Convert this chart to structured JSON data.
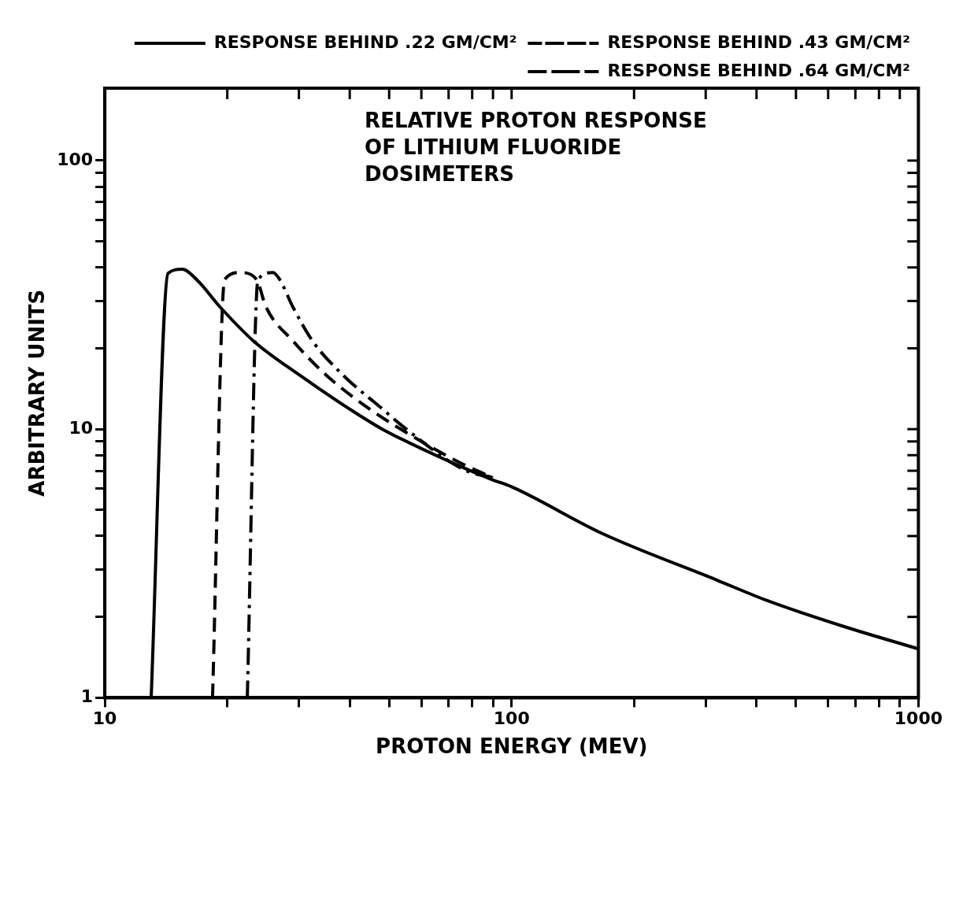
{
  "chart_data": {
    "type": "line",
    "xlabel": "PROTON ENERGY (MEV)",
    "ylabel": "ARBITRARY UNITS",
    "annotations": [
      "RELATIVE PROTON RESPONSE OF LITHIUM FLUORIDE DOSIMETERS"
    ],
    "log": "xy",
    "grid": false,
    "legend": "top right",
    "marker": "none",
    "xlim": [
      10,
      1000
    ],
    "ylim": [
      1,
      186
    ],
    "xticks": [
      10,
      {
        "value": 20,
        "label": null
      },
      {
        "value": 30,
        "label": null
      },
      {
        "value": 40,
        "label": null
      },
      {
        "value": 50,
        "label": null
      },
      {
        "value": 60,
        "label": null
      },
      {
        "value": 70,
        "label": null
      },
      {
        "value": 80,
        "label": null
      },
      {
        "value": 90,
        "label": null
      },
      100,
      {
        "value": 200,
        "label": null
      },
      {
        "value": 300,
        "label": null
      },
      {
        "value": 400,
        "label": null
      },
      {
        "value": 500,
        "label": null
      },
      {
        "value": 600,
        "label": null
      },
      {
        "value": 700,
        "label": null
      },
      {
        "value": 800,
        "label": null
      },
      {
        "value": 900,
        "label": null
      },
      1000
    ],
    "yticks": [
      1,
      {
        "value": 2,
        "label": null
      },
      {
        "value": 3,
        "label": null
      },
      {
        "value": 4,
        "label": null
      },
      {
        "value": 5,
        "label": null
      },
      {
        "value": 6,
        "label": null
      },
      {
        "value": 7,
        "label": null
      },
      {
        "value": 8,
        "label": null
      },
      {
        "value": 9,
        "label": null
      },
      10,
      {
        "value": 20,
        "label": null
      },
      {
        "value": 30,
        "label": null
      },
      {
        "value": 40,
        "label": null
      },
      {
        "value": 50,
        "label": null
      },
      {
        "value": 60,
        "label": null
      },
      {
        "value": 70,
        "label": null
      },
      {
        "value": 80,
        "label": null
      },
      {
        "value": 90,
        "label": null
      },
      100
    ],
    "series": [
      {
        "name": "RESPONSE BEHIND .22 GM/CM²",
        "color": "#000000",
        "line_style": "solid",
        "x": [
          13.0,
          14.3,
          15.5,
          16.8,
          19.2,
          23.2,
          30.1,
          39.9,
          48.1,
          70,
          89.3,
          100,
          167.5,
          320,
          425,
          650,
          1000
        ],
        "values": [
          1.0,
          38,
          39.4,
          36.1,
          28.5,
          21.3,
          15.9,
          11.9,
          10.0,
          7.6,
          6.5,
          6.1,
          4.08,
          2.74,
          2.3,
          1.85,
          1.52
        ]
      },
      {
        "name": "RESPONSE BEHIND .43 GM/CM²",
        "color": "#000000",
        "line_style": "dashed",
        "x": [
          18.4,
          19.7,
          21.5,
          23.6,
          24.9,
          29.0,
          35.0,
          44.7,
          60,
          76,
          90
        ],
        "values": [
          1.0,
          36,
          38.3,
          36.1,
          28.5,
          21.3,
          15.9,
          11.9,
          9.0,
          7.4,
          6.6
        ]
      },
      {
        "name": "RESPONSE BEHIND .64 GM/CM²",
        "color": "#000000",
        "line_style": "dashdot",
        "x": [
          22.4,
          23.8,
          25.9,
          26.9,
          29.0,
          32.4,
          38.5,
          48.1,
          55.1,
          76.5,
          90
        ],
        "values": [
          1.0,
          36,
          38.3,
          36.1,
          28.5,
          21.3,
          15.9,
          11.9,
          10.0,
          7.05,
          6.6
        ]
      }
    ]
  }
}
